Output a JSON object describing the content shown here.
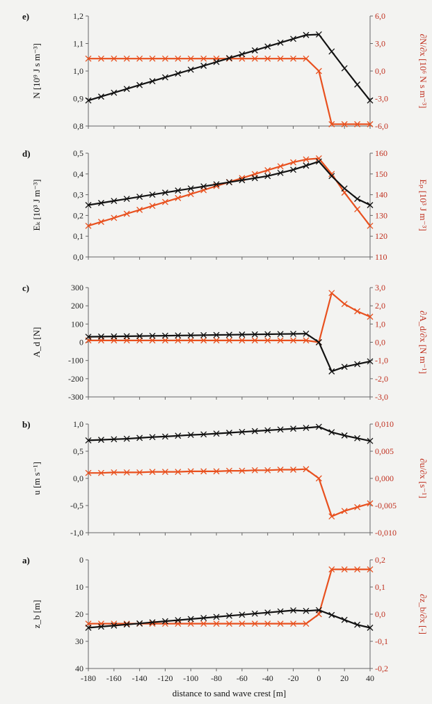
{
  "chart_data": [
    {
      "panel": "e)",
      "type": "line",
      "ylabel_left": "N [10⁹ J s m⁻³]",
      "ylabel_right": "∂N/∂x [10⁶ N s m⁻³]",
      "left_ticks": [
        "1,2",
        "1,1",
        "1,0",
        "0,9",
        "0,8"
      ],
      "right_ticks": [
        "6,0",
        "3,0",
        "0,0",
        "-3,0",
        "-6,0"
      ],
      "left_range": [
        0.8,
        1.2
      ],
      "right_range": [
        -6,
        6
      ],
      "left_inverted": false,
      "left_color": "#111111",
      "right_color": "#e8501e",
      "x": [
        -180,
        -170,
        -160,
        -150,
        -140,
        -130,
        -120,
        -110,
        -100,
        -90,
        -80,
        -70,
        -60,
        -50,
        -40,
        -30,
        -20,
        -10,
        0,
        10,
        20,
        30,
        40
      ],
      "left_series": [
        0.893,
        0.907,
        0.921,
        0.935,
        0.949,
        0.963,
        0.977,
        0.991,
        1.005,
        1.019,
        1.033,
        1.047,
        1.061,
        1.075,
        1.089,
        1.103,
        1.117,
        1.131,
        1.133,
        1.071,
        1.01,
        0.951,
        0.893
      ],
      "right_series": [
        1.35,
        1.35,
        1.35,
        1.35,
        1.35,
        1.35,
        1.35,
        1.35,
        1.35,
        1.35,
        1.35,
        1.35,
        1.35,
        1.35,
        1.35,
        1.35,
        1.35,
        1.35,
        0.0,
        -5.8,
        -5.8,
        -5.8,
        -5.8
      ]
    },
    {
      "panel": "d)",
      "type": "line",
      "ylabel_left": "Eₖ [10³ J m⁻³]",
      "ylabel_right": "Eₚ [10³ J m⁻³]",
      "left_ticks": [
        "0,5",
        "0,4",
        "0,3",
        "0,2",
        "0,1",
        "0,0"
      ],
      "right_ticks": [
        "160",
        "150",
        "140",
        "130",
        "120",
        "110"
      ],
      "left_range": [
        0,
        0.5
      ],
      "right_range": [
        110,
        160
      ],
      "left_inverted": false,
      "left_color": "#111111",
      "right_color": "#e8501e",
      "x": [
        -180,
        -170,
        -160,
        -150,
        -140,
        -130,
        -120,
        -110,
        -100,
        -90,
        -80,
        -70,
        -60,
        -50,
        -40,
        -30,
        -20,
        -10,
        0,
        10,
        20,
        30,
        40
      ],
      "left_series": [
        0.25,
        0.26,
        0.27,
        0.28,
        0.29,
        0.3,
        0.31,
        0.32,
        0.33,
        0.34,
        0.35,
        0.36,
        0.37,
        0.38,
        0.39,
        0.405,
        0.42,
        0.44,
        0.46,
        0.39,
        0.33,
        0.28,
        0.25
      ],
      "right_series": [
        125.0,
        126.9,
        128.8,
        130.8,
        132.7,
        134.6,
        136.5,
        138.4,
        140.3,
        142.2,
        144.2,
        146.1,
        148.0,
        149.9,
        151.8,
        153.7,
        155.6,
        157.0,
        157.5,
        150.0,
        141.0,
        133.0,
        125.0
      ]
    },
    {
      "panel": "c)",
      "type": "line",
      "ylabel_left": "A_d [N]",
      "ylabel_right": "∂A_d/∂x [N m⁻¹]",
      "left_ticks": [
        "300",
        "200",
        "100",
        "0",
        "-100",
        "-200",
        "-300"
      ],
      "right_ticks": [
        "3,0",
        "2,0",
        "1,0",
        "0,0",
        "-1,0",
        "-2,0",
        "-3,0"
      ],
      "left_range": [
        -300,
        300
      ],
      "right_range": [
        -3,
        3
      ],
      "left_inverted": false,
      "left_color": "#111111",
      "right_color": "#e8501e",
      "x": [
        -180,
        -170,
        -160,
        -150,
        -140,
        -130,
        -120,
        -110,
        -100,
        -90,
        -80,
        -70,
        -60,
        -50,
        -40,
        -30,
        -20,
        -10,
        0,
        10,
        20,
        30,
        40
      ],
      "left_series": [
        30,
        31,
        32,
        33,
        34,
        35,
        36,
        37,
        38,
        39,
        40,
        41,
        42,
        43,
        44,
        45,
        46,
        47,
        0,
        -160,
        -135,
        -120,
        -105
      ],
      "right_series": [
        0.1,
        0.1,
        0.1,
        0.1,
        0.1,
        0.1,
        0.1,
        0.1,
        0.1,
        0.1,
        0.1,
        0.1,
        0.1,
        0.1,
        0.1,
        0.1,
        0.1,
        0.1,
        0.0,
        2.7,
        2.1,
        1.7,
        1.4
      ]
    },
    {
      "panel": "b)",
      "type": "line",
      "ylabel_left": "u [m s⁻¹]",
      "ylabel_right": "∂u/∂x [s⁻¹]",
      "left_ticks": [
        "1,0",
        "0,5",
        "0,0",
        "-0,5",
        "-1,0"
      ],
      "right_ticks": [
        "0,010",
        "0,005",
        "0,000",
        "-0,005",
        "-0,010"
      ],
      "left_range": [
        -1,
        1
      ],
      "right_range": [
        -0.01,
        0.01
      ],
      "left_inverted": false,
      "left_color": "#111111",
      "right_color": "#e8501e",
      "x": [
        -180,
        -170,
        -160,
        -150,
        -140,
        -130,
        -120,
        -110,
        -100,
        -90,
        -80,
        -70,
        -60,
        -50,
        -40,
        -30,
        -20,
        -10,
        0,
        10,
        20,
        30,
        40
      ],
      "left_series": [
        0.7,
        0.71,
        0.72,
        0.73,
        0.745,
        0.76,
        0.77,
        0.785,
        0.8,
        0.81,
        0.825,
        0.84,
        0.855,
        0.87,
        0.885,
        0.9,
        0.915,
        0.93,
        0.95,
        0.85,
        0.79,
        0.74,
        0.69
      ],
      "right_series": [
        0.001,
        0.001,
        0.0011,
        0.0011,
        0.0011,
        0.0012,
        0.0012,
        0.0012,
        0.0013,
        0.0013,
        0.0013,
        0.0014,
        0.0014,
        0.0015,
        0.0015,
        0.0016,
        0.0016,
        0.0017,
        0.0,
        -0.007,
        -0.006,
        -0.0053,
        -0.0046
      ]
    },
    {
      "panel": "a)",
      "type": "line",
      "ylabel_left": "z_b [m]",
      "ylabel_right": "∂z_b/∂x [-]",
      "left_ticks": [
        "0",
        "10",
        "20",
        "30",
        "40"
      ],
      "right_ticks": [
        "0,2",
        "0,1",
        "0,0",
        "-0,1",
        "-0,2"
      ],
      "left_range": [
        0,
        40
      ],
      "right_range": [
        -0.2,
        0.2
      ],
      "left_inverted": true,
      "left_color": "#111111",
      "right_color": "#e8501e",
      "x": [
        -180,
        -170,
        -160,
        -150,
        -140,
        -130,
        -120,
        -110,
        -100,
        -90,
        -80,
        -70,
        -60,
        -50,
        -40,
        -30,
        -20,
        -10,
        0,
        10,
        20,
        30,
        40
      ],
      "left_series": [
        25.0,
        24.6,
        24.2,
        23.8,
        23.4,
        23.0,
        22.6,
        22.2,
        21.8,
        21.4,
        21.0,
        20.6,
        20.2,
        19.8,
        19.4,
        19.0,
        18.6,
        18.8,
        18.5,
        20.3,
        22.1,
        23.9,
        25.0
      ],
      "right_series": [
        -0.035,
        -0.035,
        -0.035,
        -0.035,
        -0.035,
        -0.035,
        -0.035,
        -0.035,
        -0.035,
        -0.035,
        -0.035,
        -0.035,
        -0.035,
        -0.035,
        -0.035,
        -0.035,
        -0.035,
        -0.035,
        0.0,
        0.165,
        0.165,
        0.165,
        0.165
      ]
    }
  ],
  "x_axis": {
    "ticks": [
      "-180",
      "-160",
      "-140",
      "-120",
      "-100",
      "-80",
      "-60",
      "-40",
      "-20",
      "0",
      "20",
      "40"
    ],
    "range": [
      -180,
      40
    ],
    "label": "distance to sand wave crest [m]"
  }
}
